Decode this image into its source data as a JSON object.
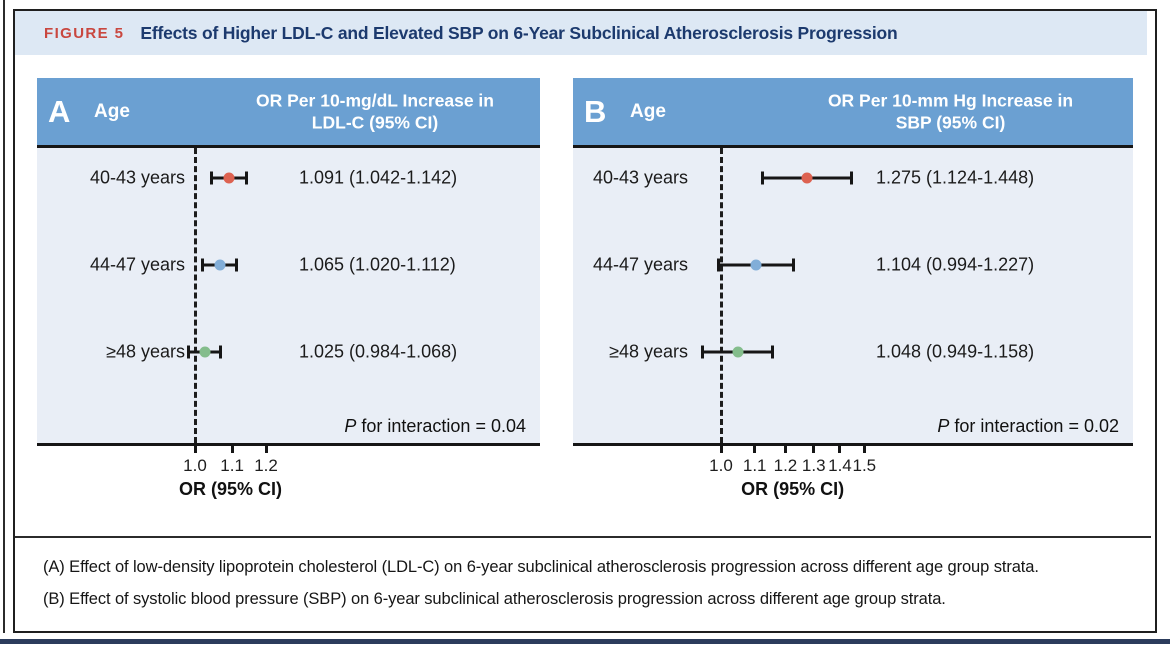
{
  "figure": {
    "label": "FIGURE 5",
    "title": "Effects of Higher LDL-C and Elevated SBP on 6-Year Subclinical Atherosclerosis Progression"
  },
  "caption": {
    "line_a": "(A) Effect of low-density lipoprotein cholesterol (LDL-C) on 6-year subclinical atherosclerosis progression across different age group strata.",
    "line_b": "(B) Effect of systolic blood pressure (SBP) on 6-year subclinical atherosclerosis progression across different age group strata."
  },
  "colors": {
    "header_blue": "#6ba0d2",
    "panel_body": "#e9eef6",
    "title_bar": "#dde8f4",
    "figure_label_red": "#c9473f",
    "title_navy": "#1c3a6e",
    "marker_red": "#dd6251",
    "marker_blue": "#82aed8",
    "marker_green": "#84bd8c"
  },
  "chart_data": [
    {
      "type": "scatter",
      "subtype": "forest-plot",
      "id": "A",
      "age_header": "Age",
      "or_header_lines": [
        "OR Per 10-mg/dL Increase in",
        "LDL-C (95% CI)"
      ],
      "rows": [
        {
          "age": "40-43 years",
          "or": 1.091,
          "ci_low": 1.042,
          "ci_high": 1.142,
          "or_text": "1.091 (1.042-1.142)",
          "marker_color": "#dd6251"
        },
        {
          "age": "44-47 years",
          "or": 1.065,
          "ci_low": 1.02,
          "ci_high": 1.112,
          "or_text": "1.065 (1.020-1.112)",
          "marker_color": "#82aed8"
        },
        {
          "age": "≥48 years",
          "or": 1.025,
          "ci_low": 0.984,
          "ci_high": 1.068,
          "or_text": "1.025 (0.984-1.068)",
          "marker_color": "#84bd8c"
        }
      ],
      "p_interaction_label": "P",
      "p_interaction_text": " for interaction = 0.04",
      "axis": {
        "scale": "log",
        "ref_line": 1.0,
        "ticks": [
          1.0,
          1.1,
          1.2
        ],
        "tick_labels": [
          "1.0",
          "1.1",
          "1.2"
        ],
        "title": "OR (95% CI)"
      }
    },
    {
      "type": "scatter",
      "subtype": "forest-plot",
      "id": "B",
      "age_header": "Age",
      "or_header_lines": [
        "OR Per 10-mm Hg Increase in",
        "SBP (95% CI)"
      ],
      "rows": [
        {
          "age": "40-43 years",
          "or": 1.275,
          "ci_low": 1.124,
          "ci_high": 1.448,
          "or_text": "1.275 (1.124-1.448)",
          "marker_color": "#dd6251"
        },
        {
          "age": "44-47 years",
          "or": 1.104,
          "ci_low": 0.994,
          "ci_high": 1.227,
          "or_text": "1.104 (0.994-1.227)",
          "marker_color": "#82aed8"
        },
        {
          "age": "≥48 years",
          "or": 1.048,
          "ci_low": 0.949,
          "ci_high": 1.158,
          "or_text": "1.048 (0.949-1.158)",
          "marker_color": "#84bd8c"
        }
      ],
      "p_interaction_label": "P",
      "p_interaction_text": " for interaction = 0.02",
      "axis": {
        "scale": "log",
        "ref_line": 1.0,
        "ticks": [
          1.0,
          1.1,
          1.2,
          1.3,
          1.4,
          1.5
        ],
        "tick_labels": [
          "1.0",
          "1.1",
          "1.2",
          "1.3",
          "1.4",
          "1.5"
        ],
        "title": "OR (95% CI)"
      }
    }
  ]
}
